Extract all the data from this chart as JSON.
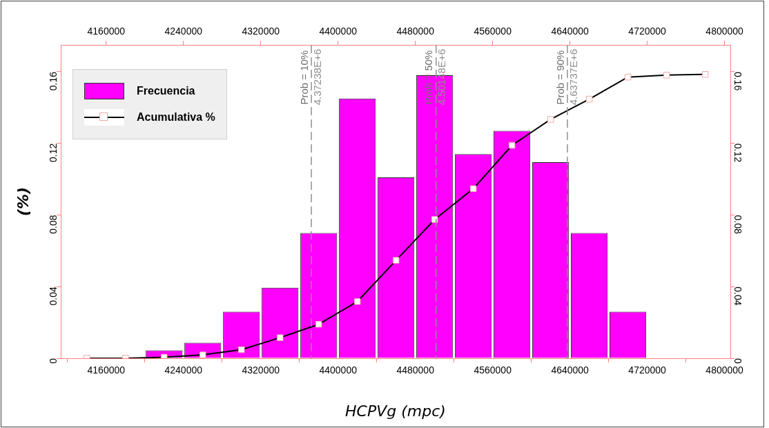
{
  "chart_data": {
    "type": "histogram",
    "xlabel": "HCPVg (mpc)",
    "ylabel": "(%)",
    "bins": [
      4200000,
      4240000,
      4280000,
      4320000,
      4360000,
      4400000,
      4440000,
      4480000,
      4520000,
      4560000,
      4600000,
      4640000,
      4680000,
      4720000
    ],
    "series": [
      {
        "name": "Frecuencia",
        "color": "#ff00ff",
        "values": [
          0.0044,
          0.0087,
          0.026,
          0.0394,
          0.07,
          0.145,
          0.101,
          0.158,
          0.114,
          0.127,
          0.1095,
          0.07,
          0.026
        ]
      },
      {
        "name": "Acumulativa %",
        "type": "line",
        "axis": "y2",
        "color": "#000000",
        "marker": "square",
        "x": [
          4140000,
          4180000,
          4220000,
          4260000,
          4300000,
          4340000,
          4380000,
          4420000,
          4460000,
          4500000,
          4540000,
          4580000,
          4620000,
          4660000,
          4700000,
          4740000,
          4780000
        ],
        "values": [
          0,
          0,
          0.0006,
          0.0019,
          0.0048,
          0.0115,
          0.019,
          0.0317,
          0.0547,
          0.0775,
          0.0947,
          0.1189,
          0.1334,
          0.1447,
          0.157,
          0.1581,
          0.1585
        ]
      }
    ],
    "xlim": [
      4113000,
      4806000
    ],
    "xticks": [
      4160000,
      4240000,
      4320000,
      4400000,
      4480000,
      4560000,
      4640000,
      4720000,
      4800000
    ],
    "x2lim": [
      4113000,
      4806000
    ],
    "x2ticks": [
      4160000,
      4240000,
      4320000,
      4400000,
      4480000,
      4560000,
      4640000,
      4720000,
      4800000
    ],
    "ylim": [
      0,
      0.175
    ],
    "yticks": [
      0,
      0.04,
      0.08,
      0.12,
      0.16
    ],
    "y2lim": [
      0,
      0.175
    ],
    "y2ticks": [
      0,
      0.04,
      0.08,
      0.12,
      0.16
    ],
    "ref_lines": [
      {
        "axis": "x",
        "value": 4372380,
        "label": "4.37238E+6",
        "color": "#909090",
        "line_style": "dashed"
      },
      {
        "axis": "x",
        "value": 4501480,
        "label": "4.50148E+6",
        "color": "#909090",
        "line_style": "dashed"
      },
      {
        "axis": "x",
        "value": 4637370,
        "label": "4.63737E+6",
        "color": "#909090",
        "line_style": "dashed"
      }
    ],
    "annotations": [
      {
        "text": "Prob = 10%",
        "x": 4372380,
        "y": 0.172
      },
      {
        "text": "Prob = 50%",
        "x": 4501480,
        "y": 0.172
      },
      {
        "text": "Prob = 90%",
        "x": 4637370,
        "y": 0.172
      }
    ],
    "legend": "top left",
    "grid": false
  }
}
